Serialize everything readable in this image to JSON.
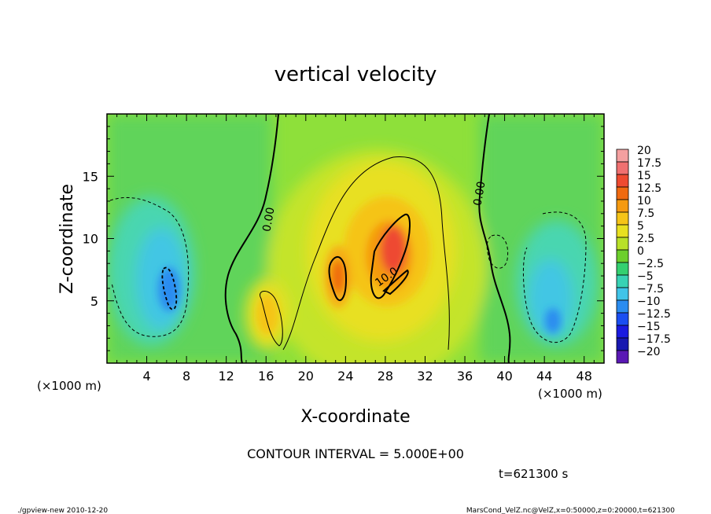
{
  "chart_data": {
    "type": "heatmap",
    "title": "vertical velocity",
    "xlabel": "X-coordinate",
    "ylabel": "Z-coordinate",
    "x_unit_label": "(×1000 m)",
    "y_unit_label": "(×1000 m)",
    "xlim": [
      0,
      50
    ],
    "ylim": [
      0,
      20
    ],
    "x_ticks": [
      4,
      8,
      12,
      16,
      20,
      24,
      28,
      32,
      36,
      40,
      44,
      48
    ],
    "y_ticks": [
      5,
      10,
      15
    ],
    "colorbar": {
      "levels": [
        "20",
        "17.5",
        "15",
        "12.5",
        "10",
        "7.5",
        "5",
        "2.5",
        "0",
        "−2.5",
        "−5",
        "−7.5",
        "−10",
        "−12.5",
        "−15",
        "−17.5",
        "−20"
      ],
      "colors": [
        "#f4a0a0",
        "#f07070",
        "#ee4a30",
        "#f06a10",
        "#f59a10",
        "#f5c418",
        "#e8e020",
        "#b8e028",
        "#6ccf2c",
        "#34d070",
        "#38d2b4",
        "#40c4e8",
        "#2a8cf0",
        "#1a4ef2",
        "#1a1ae0",
        "#1818b0",
        "#5a18b4"
      ]
    },
    "contour_labels": [
      "0.00",
      "0.00",
      "10.0"
    ],
    "contour_interval_text": "CONTOUR INTERVAL = 5.000E+00",
    "time_text": "t=621300 s",
    "features": [
      {
        "name": "updraft-core",
        "x": 28.5,
        "z": 8.5,
        "w": 13
      },
      {
        "name": "updraft-cell",
        "x": 23,
        "z": 7,
        "w": 11
      },
      {
        "name": "updraft-left",
        "x": 16.5,
        "z": 4,
        "w": 5
      },
      {
        "name": "downdraft-left",
        "x": 6,
        "z": 6.5,
        "w": -9
      },
      {
        "name": "downdraft-right",
        "x": 45,
        "z": 4,
        "w": -8
      }
    ]
  },
  "footer": {
    "left": "./gpview-new  2010-12-20",
    "right": "MarsCond_VelZ.nc@VelZ,x=0:50000,z=0:20000,t=621300"
  }
}
